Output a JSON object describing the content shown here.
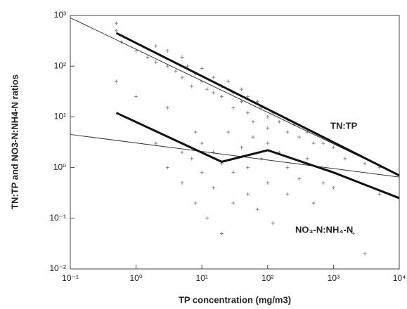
{
  "chart_data": {
    "type": "scatter",
    "x_label": "TP concentration (mg/m3)",
    "y_label": "TN:TP and NO3-N:NH4-N ratios",
    "log_x": true,
    "log_y": true,
    "xlim": [
      0.1,
      10000
    ],
    "ylim": [
      0.01,
      1000
    ],
    "xticks": [
      {
        "value": 0.1,
        "label": "10⁻¹"
      },
      {
        "value": 1,
        "label": "10⁰"
      },
      {
        "value": 10,
        "label": "10¹"
      },
      {
        "value": 100,
        "label": "10²"
      },
      {
        "value": 1000,
        "label": "10³"
      },
      {
        "value": 10000,
        "label": "10⁴"
      }
    ],
    "yticks": [
      {
        "value": 0.01,
        "label": "10⁻²"
      },
      {
        "value": 0.1,
        "label": "10⁻¹"
      },
      {
        "value": 1,
        "label": "10⁰"
      },
      {
        "value": 10,
        "label": "10¹"
      },
      {
        "value": 100,
        "label": "10²"
      },
      {
        "value": 1000,
        "label": "10³"
      }
    ],
    "point_color": "#888888",
    "points": {
      "x": [
        0.5,
        0.5,
        0.6,
        1,
        1.5,
        2,
        2,
        3,
        3,
        4,
        5,
        5,
        6,
        7,
        8,
        10,
        10,
        12,
        15,
        15,
        20,
        20,
        25,
        30,
        30,
        40,
        40,
        50,
        50,
        60,
        70,
        80,
        100,
        100,
        120,
        150,
        200,
        200,
        250,
        300,
        400,
        500,
        700,
        1000,
        1500,
        3000,
        5000,
        0.5,
        1,
        8,
        5,
        3,
        2,
        3,
        5,
        5,
        7,
        8,
        10,
        10,
        12,
        15,
        15,
        20,
        20,
        25,
        30,
        30,
        40,
        50,
        50,
        60,
        70,
        80,
        100,
        100,
        120,
        150,
        200,
        200,
        300,
        400,
        500,
        700,
        1000,
        2000,
        3000,
        5000
      ],
      "y": [
        700,
        500,
        300,
        200,
        150,
        250,
        120,
        100,
        200,
        80,
        150,
        60,
        100,
        40,
        70,
        50,
        90,
        35,
        60,
        30,
        40,
        25,
        50,
        30,
        15,
        35,
        20,
        12,
        25,
        8,
        20,
        15,
        10,
        6,
        12,
        8,
        9,
        5,
        7,
        4,
        5,
        3,
        3,
        2.5,
        1.5,
        1.2,
        1,
        50,
        25,
        5,
        3,
        15,
        3,
        1,
        2,
        0.5,
        1.5,
        0.2,
        3,
        0.8,
        0.1,
        2,
        0.4,
        1.2,
        0.05,
        5,
        0.8,
        0.2,
        2.5,
        1,
        0.3,
        4,
        0.15,
        1.5,
        3,
        0.5,
        0.08,
        2,
        1,
        0.3,
        0.6,
        1.5,
        0.2,
        0.5,
        0.4,
        0.05,
        0.02,
        0.3
      ]
    },
    "lines": [
      {
        "x": [
          0.1,
          10000
        ],
        "values": [
          900,
          0.7
        ],
        "color": "#333333",
        "width": 1
      },
      {
        "x": [
          0.5,
          10000
        ],
        "values": [
          450,
          0.7
        ],
        "color": "#111111",
        "width": 3
      },
      {
        "x": [
          0.1,
          10000
        ],
        "values": [
          4.5,
          0.65
        ],
        "color": "#333333",
        "width": 1
      },
      {
        "x": [
          0.5,
          20,
          100,
          1000,
          10000
        ],
        "values": [
          12,
          1.3,
          2.2,
          0.8,
          0.25
        ],
        "color": "#111111",
        "width": 3
      }
    ],
    "annotations": [
      "TN:TP",
      "NO₃-N:NH₄-N"
    ]
  }
}
